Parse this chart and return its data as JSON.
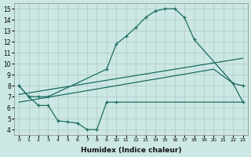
{
  "xlabel": "Humidex (Indice chaleur)",
  "xlim": [
    -0.5,
    23.5
  ],
  "ylim": [
    3.5,
    15.5
  ],
  "bg_color": "#cce8e4",
  "line_color": "#1a6b60",
  "curve_x": [
    0,
    1,
    2,
    3,
    9,
    10,
    11,
    12,
    13,
    14,
    15,
    16,
    17,
    18,
    22,
    23
  ],
  "curve_y": [
    8.0,
    7.0,
    7.0,
    7.0,
    9.5,
    11.8,
    12.5,
    13.3,
    14.2,
    14.8,
    15.0,
    15.0,
    14.2,
    12.2,
    8.2,
    8.0
  ],
  "zigzag_x": [
    0,
    1,
    2,
    3,
    4,
    5,
    6,
    7,
    8,
    9,
    10,
    11,
    12,
    13,
    14,
    15,
    16,
    17,
    18,
    19,
    20,
    21,
    22,
    23
  ],
  "zigzag_y": [
    8.0,
    7.0,
    6.2,
    6.2,
    4.8,
    4.7,
    4.6,
    4.0,
    4.0,
    6.5,
    6.5,
    6.5,
    6.5,
    6.5,
    6.5,
    6.5,
    6.5,
    6.5,
    6.5,
    6.5,
    6.5,
    6.5,
    6.5,
    6.5
  ],
  "upper_line_x": [
    0,
    22,
    23
  ],
  "upper_line_y": [
    7.2,
    10.5,
    10.5
  ],
  "lower_line_x": [
    0,
    20,
    22,
    23
  ],
  "lower_line_y": [
    6.5,
    9.5,
    8.2,
    6.5
  ]
}
